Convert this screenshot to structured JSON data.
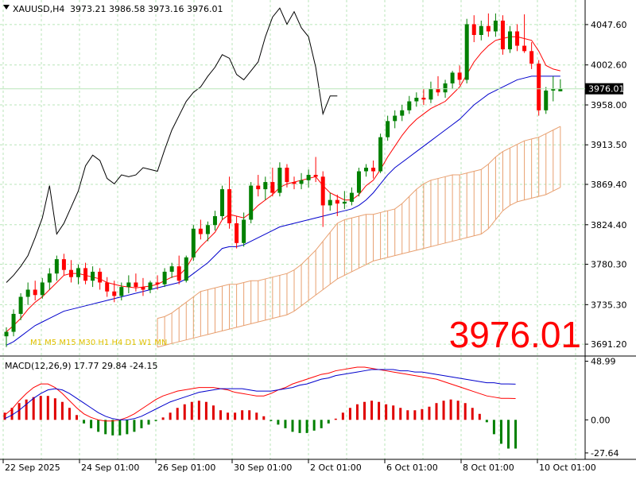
{
  "header": {
    "symbol": "XAUUSD,H4",
    "ohlc": "3973.21 3986.58 3973.16 3976.01"
  },
  "current_price": "3976.01",
  "big_price": "3976.01",
  "colors": {
    "background": "#ffffff",
    "grid": "#b8e6b8",
    "bull_candle": "#008000",
    "bear_candle": "#ff0000",
    "tenkan": "#ff0000",
    "kijun": "#0000cc",
    "chikou": "#000000",
    "cloud": "#e8a070",
    "macd_line": "#ff0000",
    "signal_line": "#0000cc",
    "hist_pos": "#e00000",
    "hist_neg": "#008000",
    "price_label_bg": "#000000",
    "big_price": "#ff0000"
  },
  "chart_data": [
    {
      "type": "candlestick",
      "title": "XAUUSD,H4",
      "ylim": [
        3678.0,
        4075.0
      ],
      "y_ticks": [
        "4047.60",
        "4002.60",
        "3958.00",
        "3913.50",
        "3869.40",
        "3824.40",
        "3780.30",
        "3735.30",
        "3691.20"
      ],
      "x_tick_labels": [
        "22 Sep 2025",
        "24 Sep 01:00",
        "26 Sep 01:00",
        "30 Sep 01:00",
        "2 Oct 01:00",
        "6 Oct 01:00",
        "8 Oct 01:00",
        "10 Oct 01:00"
      ],
      "candles": [
        {
          "o": 3700,
          "h": 3710,
          "l": 3688,
          "c": 3705
        },
        {
          "o": 3705,
          "h": 3730,
          "l": 3700,
          "c": 3725
        },
        {
          "o": 3725,
          "h": 3748,
          "l": 3718,
          "c": 3744
        },
        {
          "o": 3744,
          "h": 3760,
          "l": 3735,
          "c": 3752
        },
        {
          "o": 3752,
          "h": 3762,
          "l": 3740,
          "c": 3746
        },
        {
          "o": 3746,
          "h": 3765,
          "l": 3742,
          "c": 3760
        },
        {
          "o": 3760,
          "h": 3776,
          "l": 3752,
          "c": 3770
        },
        {
          "o": 3770,
          "h": 3790,
          "l": 3762,
          "c": 3786
        },
        {
          "o": 3786,
          "h": 3792,
          "l": 3768,
          "c": 3774
        },
        {
          "o": 3774,
          "h": 3785,
          "l": 3760,
          "c": 3766
        },
        {
          "o": 3766,
          "h": 3780,
          "l": 3758,
          "c": 3776
        },
        {
          "o": 3776,
          "h": 3782,
          "l": 3758,
          "c": 3762
        },
        {
          "o": 3762,
          "h": 3778,
          "l": 3755,
          "c": 3772
        },
        {
          "o": 3772,
          "h": 3776,
          "l": 3752,
          "c": 3760
        },
        {
          "o": 3760,
          "h": 3766,
          "l": 3744,
          "c": 3750
        },
        {
          "o": 3750,
          "h": 3762,
          "l": 3738,
          "c": 3745
        },
        {
          "o": 3745,
          "h": 3760,
          "l": 3740,
          "c": 3755
        },
        {
          "o": 3755,
          "h": 3768,
          "l": 3748,
          "c": 3760
        },
        {
          "o": 3760,
          "h": 3770,
          "l": 3750,
          "c": 3755
        },
        {
          "o": 3755,
          "h": 3765,
          "l": 3745,
          "c": 3752
        },
        {
          "o": 3752,
          "h": 3762,
          "l": 3748,
          "c": 3760
        },
        {
          "o": 3760,
          "h": 3768,
          "l": 3752,
          "c": 3758
        },
        {
          "o": 3758,
          "h": 3776,
          "l": 3755,
          "c": 3772
        },
        {
          "o": 3772,
          "h": 3782,
          "l": 3765,
          "c": 3778
        },
        {
          "o": 3778,
          "h": 3790,
          "l": 3758,
          "c": 3762
        },
        {
          "o": 3762,
          "h": 3790,
          "l": 3760,
          "c": 3788
        },
        {
          "o": 3788,
          "h": 3824,
          "l": 3784,
          "c": 3820
        },
        {
          "o": 3820,
          "h": 3830,
          "l": 3808,
          "c": 3814
        },
        {
          "o": 3814,
          "h": 3828,
          "l": 3806,
          "c": 3824
        },
        {
          "o": 3824,
          "h": 3840,
          "l": 3818,
          "c": 3834
        },
        {
          "o": 3834,
          "h": 3868,
          "l": 3830,
          "c": 3864
        },
        {
          "o": 3864,
          "h": 3878,
          "l": 3820,
          "c": 3826
        },
        {
          "o": 3826,
          "h": 3834,
          "l": 3798,
          "c": 3804
        },
        {
          "o": 3804,
          "h": 3838,
          "l": 3800,
          "c": 3830
        },
        {
          "o": 3830,
          "h": 3872,
          "l": 3826,
          "c": 3868
        },
        {
          "o": 3868,
          "h": 3880,
          "l": 3856,
          "c": 3864
        },
        {
          "o": 3864,
          "h": 3878,
          "l": 3852,
          "c": 3872
        },
        {
          "o": 3872,
          "h": 3888,
          "l": 3856,
          "c": 3860
        },
        {
          "o": 3860,
          "h": 3894,
          "l": 3856,
          "c": 3888
        },
        {
          "o": 3888,
          "h": 3892,
          "l": 3866,
          "c": 3872
        },
        {
          "o": 3872,
          "h": 3878,
          "l": 3864,
          "c": 3870
        },
        {
          "o": 3870,
          "h": 3882,
          "l": 3864,
          "c": 3874
        },
        {
          "o": 3874,
          "h": 3886,
          "l": 3866,
          "c": 3880
        },
        {
          "o": 3880,
          "h": 3900,
          "l": 3872,
          "c": 3878
        },
        {
          "o": 3878,
          "h": 3884,
          "l": 3822,
          "c": 3846
        },
        {
          "o": 3846,
          "h": 3860,
          "l": 3840,
          "c": 3852
        },
        {
          "o": 3852,
          "h": 3858,
          "l": 3834,
          "c": 3848
        },
        {
          "o": 3848,
          "h": 3862,
          "l": 3842,
          "c": 3850
        },
        {
          "o": 3850,
          "h": 3866,
          "l": 3846,
          "c": 3860
        },
        {
          "o": 3860,
          "h": 3888,
          "l": 3856,
          "c": 3884
        },
        {
          "o": 3884,
          "h": 3892,
          "l": 3878,
          "c": 3888
        },
        {
          "o": 3888,
          "h": 3896,
          "l": 3876,
          "c": 3884
        },
        {
          "o": 3884,
          "h": 3926,
          "l": 3882,
          "c": 3922
        },
        {
          "o": 3922,
          "h": 3946,
          "l": 3918,
          "c": 3940
        },
        {
          "o": 3940,
          "h": 3952,
          "l": 3932,
          "c": 3946
        },
        {
          "o": 3946,
          "h": 3958,
          "l": 3940,
          "c": 3952
        },
        {
          "o": 3952,
          "h": 3968,
          "l": 3948,
          "c": 3962
        },
        {
          "o": 3962,
          "h": 3972,
          "l": 3956,
          "c": 3966
        },
        {
          "o": 3966,
          "h": 3976,
          "l": 3958,
          "c": 3964
        },
        {
          "o": 3964,
          "h": 3984,
          "l": 3960,
          "c": 3976
        },
        {
          "o": 3976,
          "h": 3990,
          "l": 3968,
          "c": 3972
        },
        {
          "o": 3972,
          "h": 3986,
          "l": 3966,
          "c": 3982
        },
        {
          "o": 3982,
          "h": 3996,
          "l": 3976,
          "c": 3994
        },
        {
          "o": 3994,
          "h": 4002,
          "l": 3980,
          "c": 3986
        },
        {
          "o": 3986,
          "h": 4054,
          "l": 3982,
          "c": 4048
        },
        {
          "o": 4048,
          "h": 4058,
          "l": 4028,
          "c": 4036
        },
        {
          "o": 4036,
          "h": 4052,
          "l": 4030,
          "c": 4046
        },
        {
          "o": 4046,
          "h": 4060,
          "l": 4034,
          "c": 4040
        },
        {
          "o": 4040,
          "h": 4060,
          "l": 4034,
          "c": 4052
        },
        {
          "o": 4052,
          "h": 4058,
          "l": 4014,
          "c": 4020
        },
        {
          "o": 4020,
          "h": 4046,
          "l": 4016,
          "c": 4040
        },
        {
          "o": 4040,
          "h": 4048,
          "l": 4018,
          "c": 4024
        },
        {
          "o": 4024,
          "h": 4059,
          "l": 4016,
          "c": 4018
        },
        {
          "o": 4018,
          "h": 4028,
          "l": 3998,
          "c": 4004
        },
        {
          "o": 4004,
          "h": 4008,
          "l": 3946,
          "c": 3952
        },
        {
          "o": 3952,
          "h": 3978,
          "l": 3948,
          "c": 3974
        },
        {
          "o": 3974,
          "h": 3990,
          "l": 3962,
          "c": 3976
        },
        {
          "o": 3973.21,
          "h": 3986.58,
          "l": 3973.16,
          "c": 3976.01
        }
      ],
      "tenkan": [
        3705,
        3712,
        3720,
        3730,
        3738,
        3744,
        3752,
        3760,
        3768,
        3770,
        3770,
        3768,
        3766,
        3764,
        3760,
        3758,
        3756,
        3755,
        3754,
        3755,
        3756,
        3758,
        3762,
        3766,
        3768,
        3776,
        3790,
        3800,
        3808,
        3816,
        3830,
        3836,
        3834,
        3832,
        3838,
        3846,
        3852,
        3858,
        3866,
        3870,
        3872,
        3874,
        3876,
        3878,
        3868,
        3860,
        3856,
        3852,
        3852,
        3858,
        3868,
        3874,
        3886,
        3900,
        3912,
        3924,
        3934,
        3942,
        3948,
        3954,
        3958,
        3962,
        3970,
        3978,
        3992,
        4006,
        4016,
        4024,
        4030,
        4032,
        4034,
        4034,
        4032,
        4030,
        4018,
        4002,
        3998,
        3996
      ],
      "kijun": [
        3690,
        3694,
        3700,
        3706,
        3712,
        3716,
        3720,
        3724,
        3728,
        3730,
        3732,
        3734,
        3736,
        3738,
        3740,
        3742,
        3744,
        3746,
        3748,
        3750,
        3752,
        3754,
        3756,
        3758,
        3760,
        3764,
        3770,
        3776,
        3782,
        3790,
        3798,
        3800,
        3800,
        3802,
        3806,
        3810,
        3814,
        3818,
        3822,
        3824,
        3826,
        3828,
        3830,
        3832,
        3834,
        3836,
        3838,
        3840,
        3842,
        3846,
        3852,
        3860,
        3870,
        3880,
        3888,
        3894,
        3900,
        3906,
        3912,
        3918,
        3924,
        3930,
        3936,
        3942,
        3950,
        3958,
        3964,
        3970,
        3974,
        3978,
        3982,
        3986,
        3988,
        3990,
        3990,
        3990,
        3990,
        3990
      ],
      "chikou": [
        3760,
        3768,
        3778,
        3790,
        3810,
        3832,
        3868,
        3814,
        3826,
        3844,
        3862,
        3890,
        3902,
        3896,
        3876,
        3870,
        3880,
        3878,
        3880,
        3888,
        3886,
        3884,
        3908,
        3930,
        3946,
        3962,
        3972,
        3978,
        3990,
        4000,
        4014,
        4010,
        3992,
        3986,
        3996,
        4006,
        4034,
        4056,
        4066,
        4048,
        4062,
        4044,
        4034,
        4000,
        3948,
        3968,
        3968
      ],
      "cloud_top": [
        3720,
        3722,
        3726,
        3732,
        3738,
        3744,
        3750,
        3752,
        3754,
        3756,
        3758,
        3758,
        3760,
        3762,
        3762,
        3764,
        3766,
        3768,
        3770,
        3774,
        3780,
        3788,
        3796,
        3806,
        3816,
        3826,
        3830,
        3832,
        3834,
        3836,
        3836,
        3838,
        3840,
        3842,
        3848,
        3856,
        3864,
        3870,
        3874,
        3876,
        3878,
        3880,
        3880,
        3882,
        3884,
        3886,
        3892,
        3900,
        3906,
        3910,
        3914,
        3918,
        3920,
        3922,
        3926,
        3930,
        3934
      ],
      "cloud_bottom": [
        3688,
        3690,
        3692,
        3694,
        3696,
        3698,
        3700,
        3702,
        3704,
        3706,
        3708,
        3710,
        3712,
        3714,
        3716,
        3718,
        3720,
        3722,
        3724,
        3728,
        3734,
        3740,
        3746,
        3752,
        3758,
        3764,
        3768,
        3772,
        3776,
        3780,
        3784,
        3786,
        3788,
        3790,
        3792,
        3794,
        3796,
        3798,
        3800,
        3802,
        3804,
        3806,
        3808,
        3810,
        3812,
        3814,
        3820,
        3830,
        3840,
        3846,
        3850,
        3852,
        3854,
        3856,
        3858,
        3862,
        3866
      ]
    },
    {
      "type": "macd",
      "title": "MACD(12,26,9) 17.77 29.84 -24.15",
      "ylim": [
        -33.0,
        52.0
      ],
      "y_ticks": [
        "48.99",
        "0.00",
        "-27.64"
      ],
      "histogram": [
        6,
        10,
        14,
        17,
        19,
        20,
        20,
        18,
        15,
        10,
        4,
        -3,
        -7,
        -10,
        -12,
        -13,
        -13,
        -12,
        -10,
        -7,
        -4,
        -1,
        2,
        6,
        10,
        13,
        15,
        16,
        15,
        12,
        8,
        6,
        6,
        8,
        8,
        6,
        3,
        -1,
        -4,
        -7,
        -10,
        -11,
        -11,
        -9,
        -7,
        -3,
        1,
        6,
        10,
        13,
        15,
        16,
        15,
        13,
        12,
        10,
        8,
        8,
        9,
        11,
        14,
        16,
        17,
        16,
        14,
        10,
        5,
        -2,
        -12,
        -20,
        -24,
        -24
      ],
      "macd_line": [
        4,
        9,
        16,
        22,
        27,
        30,
        30,
        27,
        22,
        16,
        10,
        5,
        2,
        0,
        -1,
        -1,
        0,
        2,
        5,
        9,
        13,
        17,
        20,
        22,
        24,
        25,
        26,
        27,
        27,
        27,
        26,
        25,
        23,
        22,
        21,
        20,
        20,
        22,
        25,
        27,
        30,
        32,
        34,
        36,
        38,
        39,
        41,
        42,
        43,
        44,
        44,
        43,
        42,
        41,
        40,
        39,
        38,
        37,
        36,
        35,
        34,
        32,
        30,
        28,
        26,
        24,
        22,
        20,
        19,
        18,
        18,
        17.77
      ],
      "signal_line": [
        1,
        4,
        8,
        13,
        18,
        22,
        25,
        26,
        25,
        22,
        18,
        14,
        10,
        6,
        3,
        1,
        0,
        0,
        1,
        3,
        6,
        9,
        12,
        15,
        17,
        19,
        21,
        23,
        24,
        25,
        26,
        26,
        26,
        26,
        25,
        24,
        24,
        24,
        25,
        26,
        27,
        29,
        30,
        32,
        34,
        35,
        37,
        38,
        39,
        40,
        41,
        42,
        42,
        42,
        42,
        41,
        41,
        40,
        40,
        39,
        38,
        37,
        36,
        35,
        34,
        33,
        32,
        31,
        31,
        30,
        30,
        29.84
      ]
    }
  ],
  "panel_labels": {
    "indicator_overlay": "M1 M5 M15 M30 H1 H4 D1 W1 MN"
  }
}
